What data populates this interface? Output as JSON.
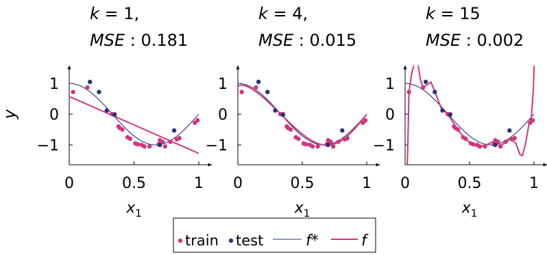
{
  "colors": {
    "train": "#d1357a",
    "test": "#23347a",
    "f_star": "#23347a",
    "f": "#d1357a",
    "axis": "#000000"
  },
  "legend": {
    "placement": "bottom-center",
    "items": [
      {
        "label": "train",
        "marker": "dot"
      },
      {
        "label": "test",
        "marker": "dot"
      },
      {
        "label": "f*",
        "marker": "thin-line"
      },
      {
        "label": "f",
        "marker": "thick-line"
      }
    ]
  },
  "chart_data": [
    {
      "type": "scatter",
      "title_line1": "k = 1,",
      "title_line2": "MSE : 0.181",
      "k": 1,
      "mse": 0.181,
      "xlabel": "x1",
      "ylabel": "y",
      "xlim": [
        0,
        1.05
      ],
      "ylim": [
        -1.7,
        1.65
      ],
      "xticks": [
        {
          "v": 0,
          "label": "0"
        },
        {
          "v": 0.5,
          "label": "0.5"
        },
        {
          "v": 1,
          "label": "1"
        }
      ],
      "yticks": [
        {
          "v": 1,
          "label": "1"
        },
        {
          "v": 0,
          "label": "0"
        },
        {
          "v": -1,
          "label": "−1"
        }
      ],
      "train": [
        [
          0.03,
          0.72
        ],
        [
          0.14,
          0.87
        ],
        [
          0.33,
          0.0
        ],
        [
          0.35,
          0.0
        ],
        [
          0.38,
          -0.4
        ],
        [
          0.39,
          -0.45
        ],
        [
          0.41,
          -0.5
        ],
        [
          0.45,
          -0.75
        ],
        [
          0.47,
          -0.8
        ],
        [
          0.51,
          -0.95
        ],
        [
          0.53,
          -0.98
        ],
        [
          0.56,
          -1.0
        ],
        [
          0.58,
          -1.05
        ],
        [
          0.62,
          -1.05
        ],
        [
          0.69,
          -0.98
        ],
        [
          0.7,
          -0.85
        ],
        [
          0.72,
          -0.9
        ],
        [
          0.74,
          -1.05
        ],
        [
          0.78,
          -0.9
        ],
        [
          0.83,
          -0.82
        ],
        [
          0.85,
          -0.78
        ],
        [
          0.97,
          -0.28
        ],
        [
          0.99,
          -0.2
        ]
      ],
      "test": [
        [
          0.16,
          1.05
        ],
        [
          0.23,
          0.72
        ],
        [
          0.29,
          0.12
        ],
        [
          0.35,
          -0.02
        ],
        [
          0.7,
          -1.0
        ],
        [
          0.81,
          -0.53
        ]
      ],
      "f_star": "cos",
      "f_poly": [
        0.575,
        -1.85
      ]
    },
    {
      "type": "scatter",
      "title_line1": "k = 4,",
      "title_line2": "MSE : 0.015",
      "k": 4,
      "mse": 0.015,
      "xlabel": "x1",
      "ylabel": "",
      "xlim": [
        0,
        1.05
      ],
      "ylim": [
        -1.7,
        1.65
      ],
      "xticks": [
        {
          "v": 0,
          "label": "0"
        },
        {
          "v": 0.5,
          "label": "0.5"
        },
        {
          "v": 1,
          "label": "1"
        }
      ],
      "yticks": [
        {
          "v": 1,
          "label": "1"
        },
        {
          "v": 0,
          "label": "0"
        },
        {
          "v": -1,
          "label": "−1"
        }
      ],
      "train": [
        [
          0.03,
          0.72
        ],
        [
          0.14,
          0.87
        ],
        [
          0.33,
          0.0
        ],
        [
          0.35,
          0.0
        ],
        [
          0.38,
          -0.4
        ],
        [
          0.39,
          -0.45
        ],
        [
          0.41,
          -0.5
        ],
        [
          0.45,
          -0.75
        ],
        [
          0.47,
          -0.8
        ],
        [
          0.51,
          -0.95
        ],
        [
          0.53,
          -0.98
        ],
        [
          0.56,
          -1.0
        ],
        [
          0.58,
          -1.05
        ],
        [
          0.62,
          -1.05
        ],
        [
          0.69,
          -0.98
        ],
        [
          0.7,
          -0.85
        ],
        [
          0.72,
          -0.9
        ],
        [
          0.74,
          -1.05
        ],
        [
          0.78,
          -0.9
        ],
        [
          0.83,
          -0.82
        ],
        [
          0.85,
          -0.78
        ],
        [
          0.97,
          -0.28
        ],
        [
          0.99,
          -0.2
        ]
      ],
      "test": [
        [
          0.16,
          1.05
        ],
        [
          0.23,
          0.72
        ],
        [
          0.29,
          0.12
        ],
        [
          0.35,
          -0.02
        ],
        [
          0.7,
          -1.0
        ],
        [
          0.81,
          -0.53
        ]
      ],
      "f_star": "cos",
      "f_poly": "near-cos"
    },
    {
      "type": "scatter",
      "title_line1": "k = 15",
      "title_line2": "MSE : 0.002",
      "k": 15,
      "mse": 0.002,
      "xlabel": "x1",
      "ylabel": "",
      "xlim": [
        0,
        1.05
      ],
      "ylim": [
        -1.7,
        1.65
      ],
      "xticks": [
        {
          "v": 0,
          "label": "0"
        },
        {
          "v": 0.5,
          "label": "0.5"
        },
        {
          "v": 1,
          "label": "1"
        }
      ],
      "yticks": [
        {
          "v": 1,
          "label": "1"
        },
        {
          "v": 0,
          "label": "0"
        },
        {
          "v": -1,
          "label": "−1"
        }
      ],
      "train": [
        [
          0.03,
          0.72
        ],
        [
          0.14,
          0.87
        ],
        [
          0.33,
          0.0
        ],
        [
          0.35,
          0.0
        ],
        [
          0.38,
          -0.4
        ],
        [
          0.39,
          -0.45
        ],
        [
          0.41,
          -0.5
        ],
        [
          0.45,
          -0.75
        ],
        [
          0.47,
          -0.8
        ],
        [
          0.51,
          -0.95
        ],
        [
          0.53,
          -0.98
        ],
        [
          0.56,
          -1.0
        ],
        [
          0.58,
          -1.05
        ],
        [
          0.62,
          -1.05
        ],
        [
          0.69,
          -0.98
        ],
        [
          0.7,
          -0.85
        ],
        [
          0.72,
          -0.9
        ],
        [
          0.74,
          -1.05
        ],
        [
          0.78,
          -0.9
        ],
        [
          0.83,
          -0.82
        ],
        [
          0.85,
          -0.78
        ],
        [
          0.97,
          -0.28
        ],
        [
          0.99,
          -0.2
        ]
      ],
      "test": [
        [
          0.16,
          1.05
        ],
        [
          0.23,
          0.72
        ],
        [
          0.29,
          0.12
        ],
        [
          0.35,
          -0.02
        ],
        [
          0.7,
          -1.0
        ],
        [
          0.81,
          -0.53
        ]
      ],
      "f_star": "cos",
      "f_poly": "overfit"
    }
  ]
}
